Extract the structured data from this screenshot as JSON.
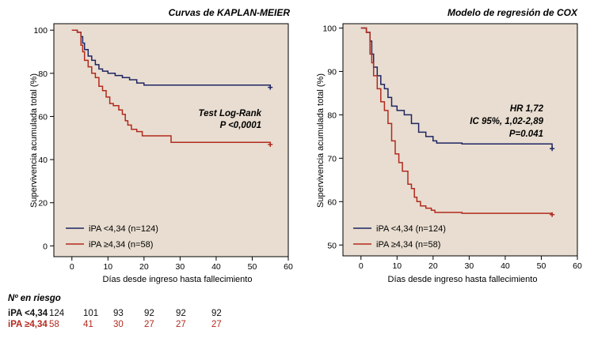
{
  "chart_data": [
    {
      "type": "line",
      "step": true,
      "title": "Curvas de KAPLAN-MEIER",
      "xlabel": "Días desde ingreso hasta fallecimiento",
      "ylabel": "Supervivencia acumulada total (%)",
      "xlim": [
        -5,
        60
      ],
      "ylim": [
        -5,
        103
      ],
      "xticks": [
        "0",
        "10",
        "20",
        "30",
        "40",
        "50",
        "60"
      ],
      "xtick_values": [
        0,
        10,
        20,
        30,
        40,
        50,
        60
      ],
      "yticks": [
        "0",
        "20",
        "40",
        "60",
        "80",
        "100"
      ],
      "ytick_values": [
        0,
        20,
        40,
        60,
        80,
        100
      ],
      "background": "#e8ddd0",
      "annotation": [
        "Test Log-Rank",
        "P <0,0001"
      ],
      "series": [
        {
          "name": "iPA <4,34 (n=124)",
          "color": "#1f2463",
          "x": [
            0,
            1.5,
            2.5,
            3,
            3.5,
            4.5,
            5.5,
            6.5,
            7.5,
            8.5,
            10,
            12,
            14,
            16,
            18,
            20,
            27,
            55
          ],
          "y": [
            100,
            99,
            97,
            94,
            91,
            88,
            86,
            84,
            82,
            81,
            80,
            79,
            78,
            77,
            75.5,
            74.5,
            74.5,
            73.5
          ]
        },
        {
          "name": "iPA ≥4,34 (n=58)",
          "color": "#b22a1e",
          "x": [
            0,
            1.5,
            2.5,
            3,
            3.5,
            4.5,
            5.5,
            6.5,
            7.5,
            8.5,
            9.5,
            10.5,
            11.5,
            13,
            14,
            14.8,
            15.5,
            16.5,
            18,
            19.5,
            27.5,
            55
          ],
          "y": [
            100,
            99,
            93,
            90,
            86,
            83,
            80,
            78,
            74,
            72,
            69,
            66,
            65,
            63,
            61,
            58,
            56,
            54,
            53,
            51,
            48,
            47
          ]
        }
      ]
    },
    {
      "type": "line",
      "step": true,
      "title": "Modelo de regresión de COX",
      "xlabel": "Días desde ingreso hasta fallecimiento",
      "ylabel": "Supervivencia acumulada total (%)",
      "xlim": [
        -5,
        60
      ],
      "ylim": [
        47.5,
        101
      ],
      "xticks": [
        "0",
        "10",
        "20",
        "30",
        "40",
        "50",
        "60"
      ],
      "xtick_values": [
        0,
        10,
        20,
        30,
        40,
        50,
        60
      ],
      "yticks": [
        "50",
        "60",
        "70",
        "80",
        "90",
        "100"
      ],
      "ytick_values": [
        50,
        60,
        70,
        80,
        90,
        100
      ],
      "background": "#e8ddd0",
      "annotation": [
        "HR 1,72",
        "IC 95%, 1,02-2,89",
        "P=0.041"
      ],
      "series": [
        {
          "name": "iPA <4,34 (n=124)",
          "color": "#1f2463",
          "x": [
            0,
            1.5,
            2.5,
            3,
            3.5,
            4.5,
            5.5,
            6.5,
            7.5,
            8.5,
            10,
            12,
            14,
            16,
            18,
            20,
            21,
            28,
            53
          ],
          "y": [
            100,
            99,
            97,
            94,
            91,
            89,
            87,
            86,
            84,
            82,
            81,
            80,
            78,
            76,
            75,
            74,
            73.5,
            73.3,
            72.2
          ]
        },
        {
          "name": "iPA ≥4,34 (n=58)",
          "color": "#b22a1e",
          "x": [
            0,
            1.5,
            2.5,
            3,
            3.5,
            4.5,
            5.5,
            6.5,
            7.5,
            8.5,
            9.5,
            10.5,
            11.5,
            13,
            14,
            14.8,
            15.5,
            16.5,
            18,
            19.5,
            20.5,
            28,
            53
          ],
          "y": [
            100,
            99,
            94,
            92,
            89,
            86,
            83,
            81,
            78,
            74,
            71,
            69,
            67,
            64,
            63,
            61,
            60,
            59,
            58.5,
            58,
            57.5,
            57.3,
            57
          ]
        }
      ]
    }
  ],
  "risk_table": {
    "title": "Nº en riesgo",
    "rows": [
      {
        "label": "iPA <4,34",
        "color": "#111111",
        "values": [
          "124",
          "101",
          "93",
          "92",
          "92",
          "92"
        ]
      },
      {
        "label": "iPA ≥4,34",
        "color": "#b22a1e",
        "values": [
          "58",
          "41",
          "30",
          "27",
          "27",
          "27"
        ]
      }
    ]
  }
}
